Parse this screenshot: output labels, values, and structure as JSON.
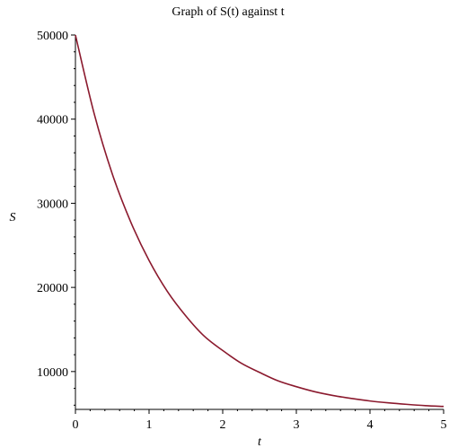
{
  "chart_data": {
    "type": "line",
    "title": "Graph of S(t) against t",
    "xlabel": "t",
    "ylabel": "S",
    "xlim": [
      0,
      5
    ],
    "ylim": [
      5500,
      50000
    ],
    "x_ticks": [
      0,
      1,
      2,
      3,
      4,
      5
    ],
    "x_tick_labels": [
      "0",
      "1",
      "2",
      "3",
      "4",
      "5"
    ],
    "y_ticks": [
      10000,
      20000,
      30000,
      40000,
      50000
    ],
    "y_tick_labels": [
      "10000",
      "20000",
      "30000",
      "40000",
      "50000"
    ],
    "grid": false,
    "color": "#8b1a2e",
    "series": [
      {
        "x": [
          0,
          0.25,
          0.5,
          0.75,
          1,
          1.25,
          1.5,
          1.75,
          2,
          2.25,
          2.5,
          2.75,
          3,
          3.25,
          3.5,
          3.75,
          4,
          4.25,
          4.5,
          4.75,
          5
        ],
        "y": [
          50000,
          40800,
          33500,
          27800,
          23200,
          19500,
          16600,
          14200,
          12500,
          11000,
          9900,
          8900,
          8200,
          7600,
          7150,
          6800,
          6500,
          6280,
          6100,
          5950,
          5850
        ]
      }
    ]
  }
}
